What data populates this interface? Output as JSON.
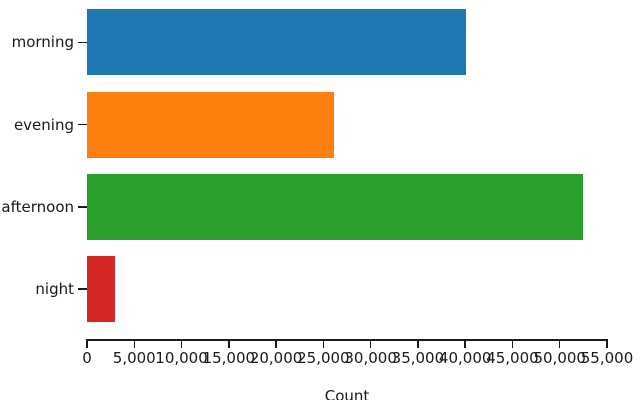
{
  "chart_data": {
    "type": "bar",
    "orientation": "horizontal",
    "title": "",
    "xlabel": "Count",
    "ylabel": "",
    "categories": [
      "morning",
      "evening",
      "afternoon",
      "night"
    ],
    "values": [
      40100,
      26100,
      52500,
      3000
    ],
    "bar_colors": [
      "#1f77b4",
      "#ff7f0e",
      "#2ca02c",
      "#d62728"
    ],
    "xlim": [
      0,
      55000
    ],
    "xticks": [
      0,
      5000,
      10000,
      15000,
      20000,
      25000,
      30000,
      35000,
      40000,
      45000,
      50000,
      55000
    ],
    "xtick_labels": [
      "0",
      "5,000",
      "10,000",
      "15,000",
      "20,000",
      "25,000",
      "30,000",
      "35,000",
      "40,000",
      "45,000",
      "50,000",
      "55,000"
    ],
    "grid": false,
    "legend": null,
    "axis_color": "#1a1a1a",
    "background_color": "#ffffff"
  }
}
